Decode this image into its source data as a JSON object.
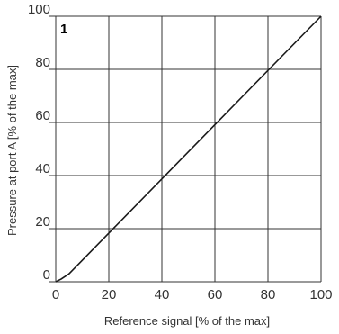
{
  "chart_data": {
    "type": "line",
    "panel_label": "1",
    "xlabel": "Reference signal [% of the max]",
    "ylabel": "Pressure at port A [% of the max]",
    "xlim": [
      0,
      100
    ],
    "ylim": [
      0,
      100
    ],
    "xticks": [
      0,
      20,
      40,
      60,
      80,
      100
    ],
    "yticks": [
      0,
      20,
      40,
      60,
      80,
      100
    ],
    "grid": true,
    "series": [
      {
        "x": [
          0,
          2,
          5,
          100
        ],
        "y": [
          0,
          1,
          3,
          100
        ]
      }
    ],
    "colors": {
      "line": "#1a1a1a",
      "grid": "#333333",
      "text": "#333333"
    }
  }
}
